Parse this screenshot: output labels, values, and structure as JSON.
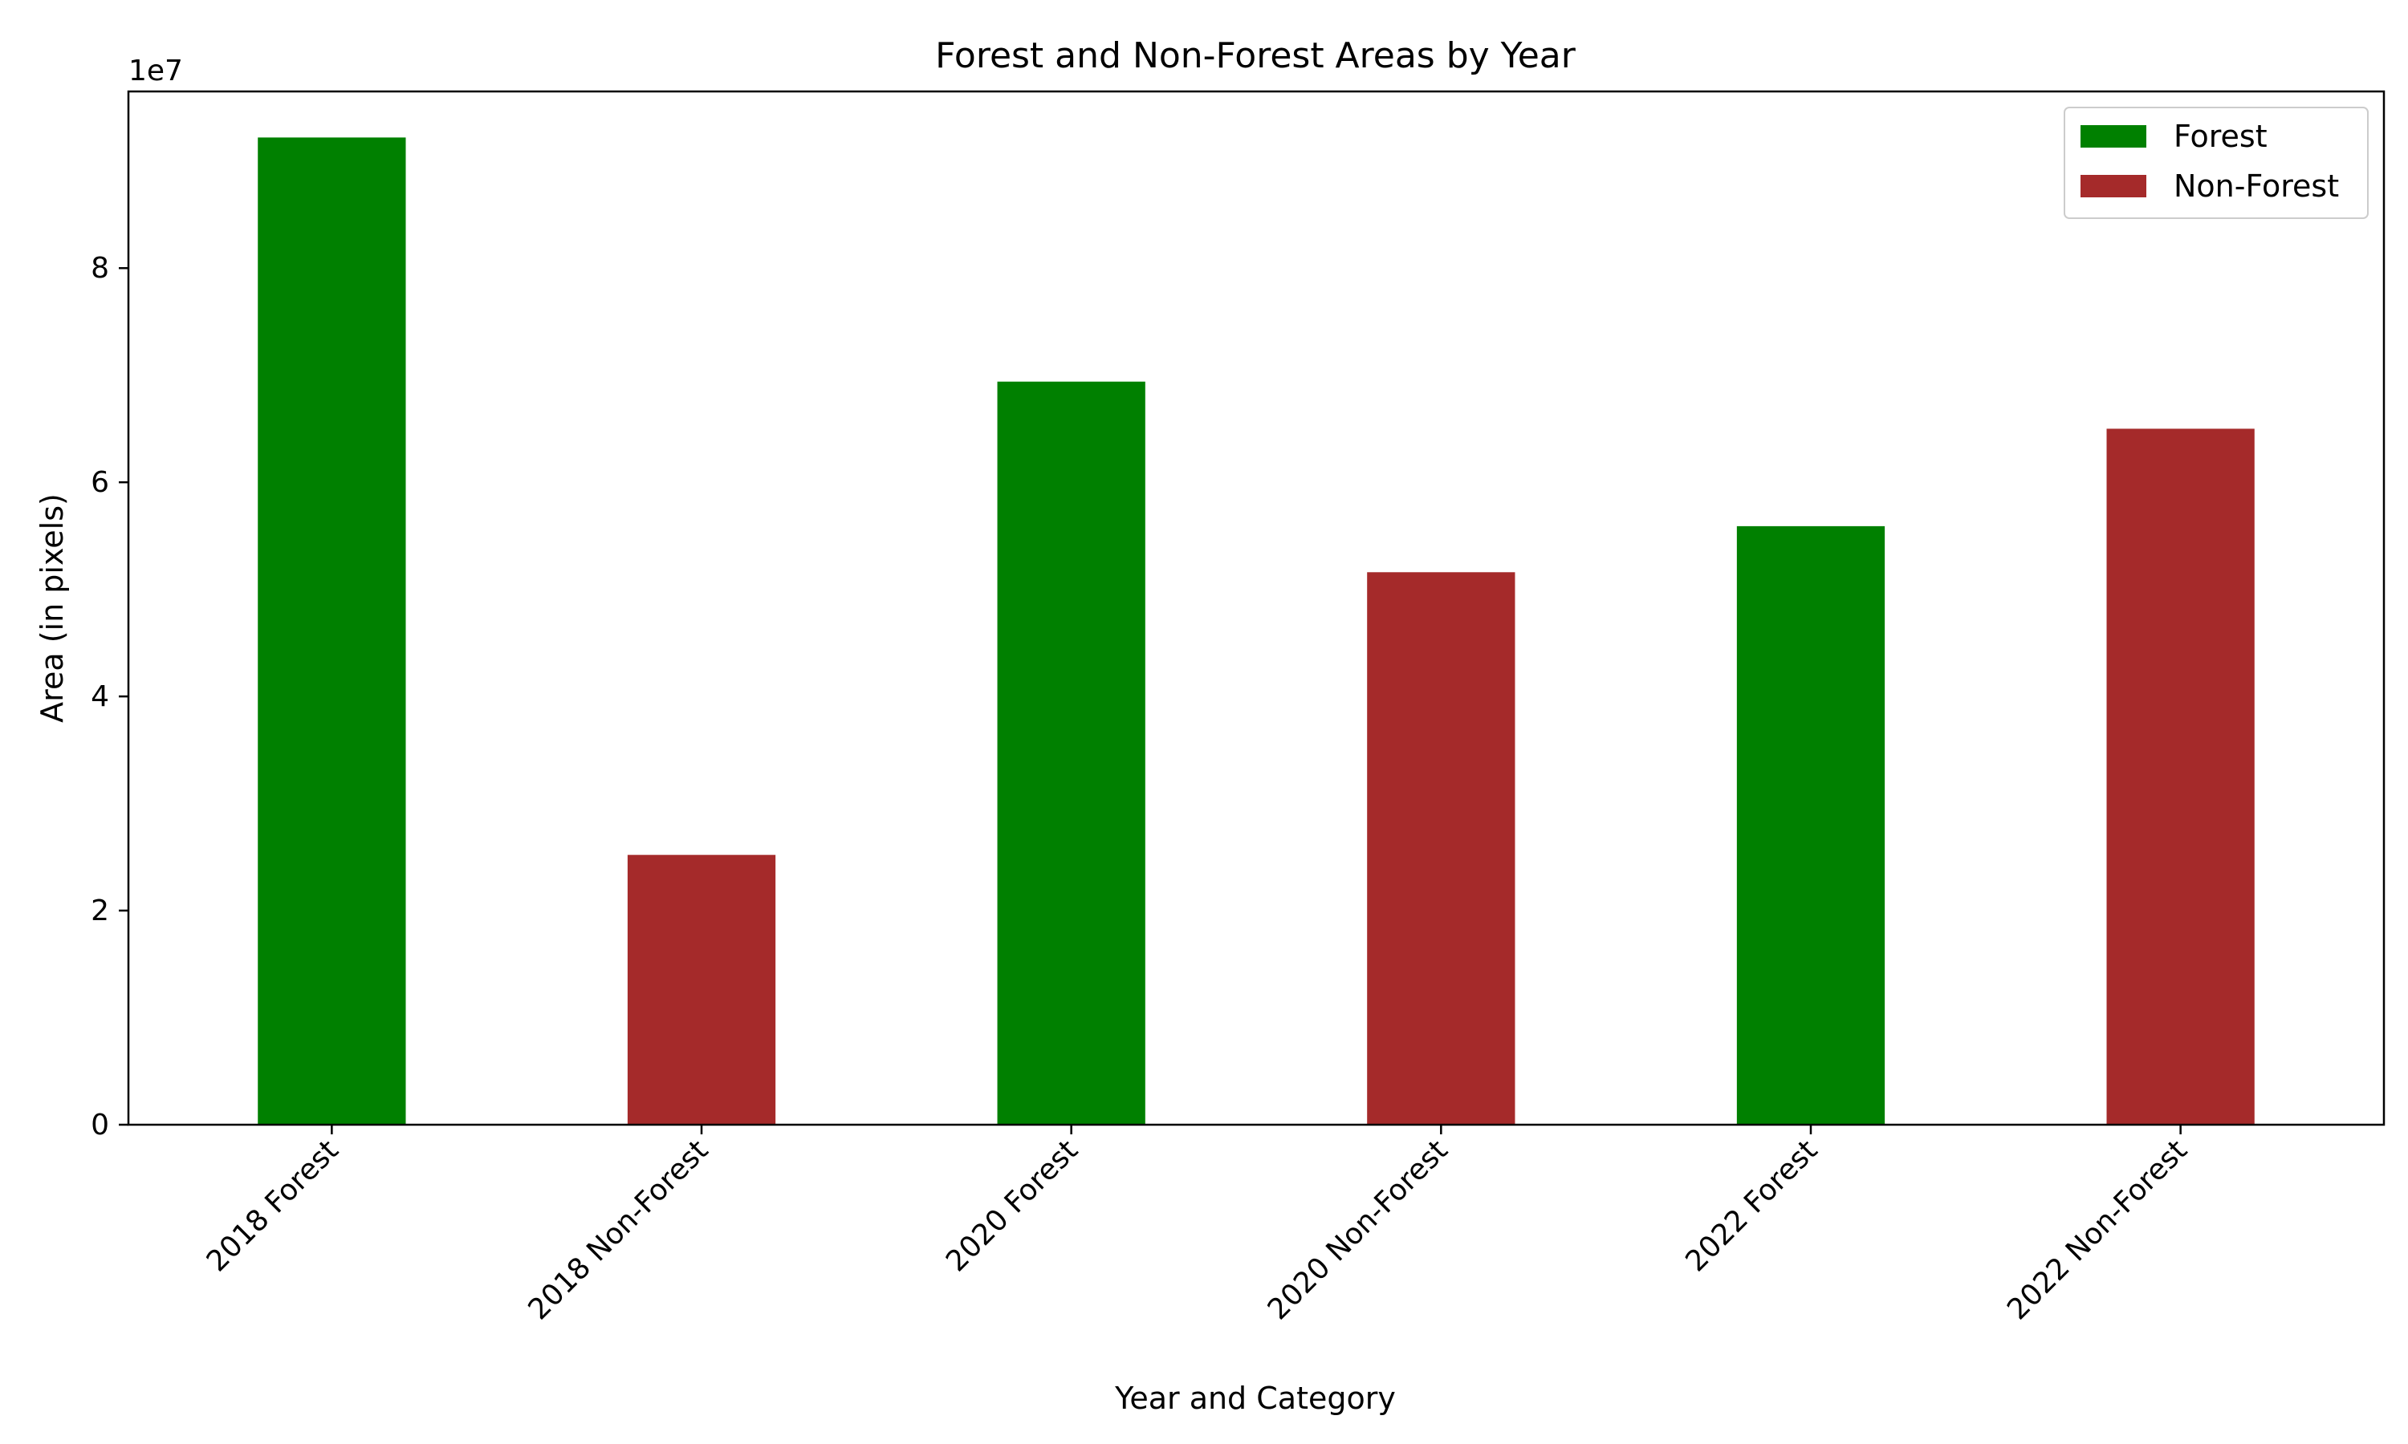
{
  "chart_data": {
    "type": "bar",
    "title": "Forest and Non-Forest Areas by Year",
    "xlabel": "Year and Category",
    "ylabel": "Area (in pixels)",
    "y_scale_label": "1e7",
    "y_scale": 10000000,
    "ylim": [
      0,
      9.65
    ],
    "yticks": [
      0,
      2,
      4,
      6,
      8
    ],
    "categories": [
      "2018 Forest",
      "2018 Non-Forest",
      "2020 Forest",
      "2020 Non-Forest",
      "2022 Forest",
      "2022 Non-Forest"
    ],
    "values_1e7": [
      9.22,
      2.52,
      6.94,
      5.16,
      5.59,
      6.5
    ],
    "bar_series": [
      "Forest",
      "Non-Forest",
      "Forest",
      "Non-Forest",
      "Forest",
      "Non-Forest"
    ],
    "series": [
      {
        "name": "Forest",
        "color": "#008000",
        "categories": [
          "2018 Forest",
          "2020 Forest",
          "2022 Forest"
        ],
        "values_1e7": [
          9.22,
          6.94,
          5.59
        ]
      },
      {
        "name": "Non-Forest",
        "color": "#a52a2a",
        "categories": [
          "2018 Non-Forest",
          "2020 Non-Forest",
          "2022 Non-Forest"
        ],
        "values_1e7": [
          2.52,
          5.16,
          6.5
        ]
      }
    ],
    "legend": {
      "position": "top-right",
      "entries": [
        "Forest",
        "Non-Forest"
      ]
    },
    "grid": false
  }
}
